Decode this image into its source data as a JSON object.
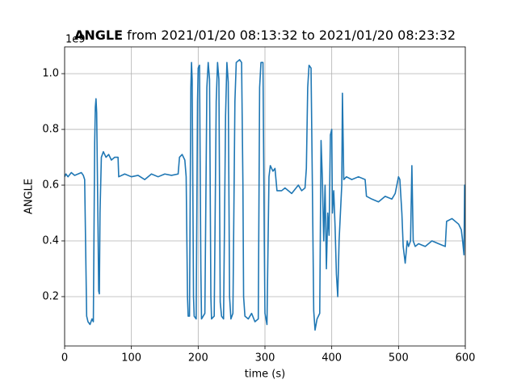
{
  "chart_data": {
    "type": "line",
    "title_bold": "ANGLE",
    "title": "from 2021/01/20 08:13:32 to 2021/01/20 08:23:32",
    "x_label": "time (s)",
    "y_label": "ANGLE",
    "y_offset_label": "1e9",
    "xlim": [
      0,
      600
    ],
    "xticks": [
      0,
      100,
      200,
      300,
      400,
      500,
      600
    ],
    "ylim": [
      0.023,
      1.096
    ],
    "yticks": [
      0.2,
      0.4,
      0.6,
      0.8,
      {
        "value": 1,
        "label": "1.0"
      }
    ],
    "grid": true,
    "series": [
      {
        "name": "ANGLE",
        "color": "#1f77b4",
        "x": [
          0,
          2,
          5,
          10,
          15,
          20,
          25,
          28,
          30,
          33,
          35,
          38,
          41,
          43,
          45,
          46,
          47,
          48,
          50,
          51,
          52,
          53,
          55,
          58,
          62,
          66,
          70,
          75,
          80,
          81,
          90,
          100,
          110,
          120,
          130,
          140,
          150,
          160,
          170,
          172,
          176,
          180,
          182,
          184,
          185,
          187,
          189,
          190,
          191,
          193,
          194,
          197,
          199,
          200,
          202,
          204,
          205,
          210,
          213,
          215,
          217,
          219,
          220,
          224,
          227,
          229,
          231,
          233,
          235,
          238,
          241,
          243,
          245,
          247,
          249,
          252,
          255,
          257,
          262,
          265,
          267,
          268,
          270,
          275,
          280,
          285,
          290,
          292,
          294,
          297,
          299,
          300,
          303,
          306,
          308,
          312,
          315,
          318,
          325,
          330,
          340,
          350,
          355,
          360,
          362,
          364,
          366,
          369,
          371,
          373,
          375,
          378,
          380,
          382,
          384,
          386,
          388,
          390,
          392,
          394,
          396,
          398,
          400,
          401,
          403,
          405,
          407,
          409,
          411,
          413,
          415,
          416,
          418,
          422,
          430,
          440,
          450,
          452,
          460,
          470,
          480,
          490,
          495,
          500,
          502,
          505,
          507,
          510,
          513,
          515,
          518,
          520,
          522,
          525,
          530,
          540,
          550,
          560,
          570,
          572,
          580,
          590,
          594,
          596,
          598,
          599,
          600
        ],
        "values": [
          0.63,
          0.64,
          0.63,
          0.645,
          0.635,
          0.64,
          0.645,
          0.635,
          0.62,
          0.13,
          0.11,
          0.1,
          0.12,
          0.11,
          0.75,
          0.88,
          0.91,
          0.86,
          0.45,
          0.22,
          0.21,
          0.5,
          0.7,
          0.72,
          0.7,
          0.71,
          0.69,
          0.7,
          0.7,
          0.63,
          0.64,
          0.63,
          0.635,
          0.62,
          0.64,
          0.63,
          0.64,
          0.635,
          0.64,
          0.7,
          0.71,
          0.69,
          0.63,
          0.2,
          0.13,
          0.13,
          0.95,
          1.04,
          0.98,
          0.2,
          0.13,
          0.12,
          0.9,
          1.02,
          1.03,
          0.3,
          0.12,
          0.14,
          0.95,
          1.04,
          0.98,
          0.2,
          0.12,
          0.13,
          0.9,
          1.04,
          0.98,
          0.18,
          0.13,
          0.12,
          0.85,
          1.04,
          0.97,
          0.2,
          0.12,
          0.14,
          0.9,
          1.04,
          1.05,
          1.04,
          0.6,
          0.2,
          0.13,
          0.12,
          0.14,
          0.11,
          0.12,
          0.95,
          1.04,
          1.04,
          0.4,
          0.14,
          0.1,
          0.63,
          0.67,
          0.65,
          0.66,
          0.58,
          0.58,
          0.59,
          0.57,
          0.6,
          0.58,
          0.59,
          0.66,
          0.95,
          1.03,
          1.02,
          0.6,
          0.15,
          0.08,
          0.12,
          0.13,
          0.14,
          0.76,
          0.62,
          0.4,
          0.6,
          0.3,
          0.5,
          0.42,
          0.78,
          0.8,
          0.5,
          0.58,
          0.45,
          0.28,
          0.2,
          0.4,
          0.5,
          0.6,
          0.93,
          0.62,
          0.63,
          0.62,
          0.63,
          0.62,
          0.56,
          0.55,
          0.54,
          0.56,
          0.55,
          0.57,
          0.63,
          0.62,
          0.5,
          0.38,
          0.32,
          0.4,
          0.38,
          0.4,
          0.67,
          0.4,
          0.38,
          0.39,
          0.38,
          0.4,
          0.39,
          0.38,
          0.47,
          0.48,
          0.46,
          0.44,
          0.4,
          0.35,
          0.6,
          0.56
        ]
      }
    ]
  }
}
